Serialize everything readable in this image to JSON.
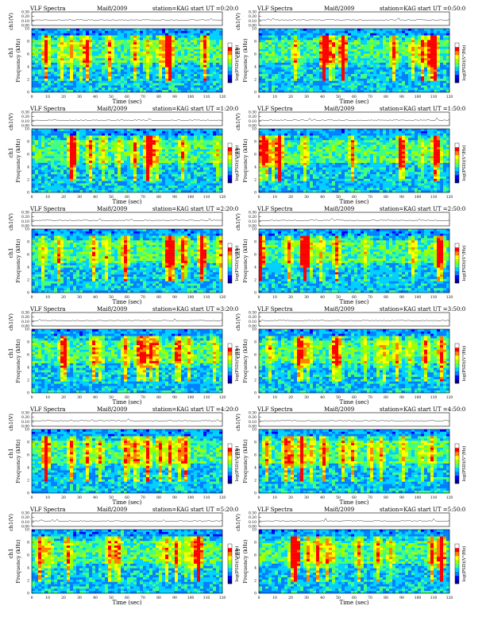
{
  "header": {
    "product": "VLF Spectra",
    "date": "Mai8/2009",
    "station": "station=KAG",
    "start_prefix": "start  UT ="
  },
  "axis_labels": {
    "voltage_ylabel": "ch1(V)",
    "spectrogram_ylabel_1": "ch1",
    "spectrogram_ylabel_2": "Frequency (kHz)",
    "xlabel": "Time (sec)",
    "colorbar_label": "log(PSD)(V²/Hz)"
  },
  "chart_data": {
    "type": "heatmap",
    "panel_count": 12,
    "layout": "6 rows x 2 columns",
    "start_times_ut": [
      "0:20:0",
      "0:50:0",
      "1:20:0",
      "1:50:0",
      "2:20:0",
      "2:50:0",
      "3:20:0",
      "3:50:0",
      "4:20:0",
      "4:50:0",
      "5:20:0",
      "5:50:0"
    ],
    "x_ticks": [
      0,
      10,
      20,
      30,
      40,
      50,
      60,
      70,
      80,
      90,
      100,
      110,
      120
    ],
    "xlim": [
      0,
      120
    ],
    "freq_ticks_khz": [
      0,
      2,
      4,
      6,
      8,
      10
    ],
    "freq_ylim_khz": [
      0,
      10
    ],
    "voltage_ticks": [
      0.3,
      0.2,
      0.1,
      0.0
    ],
    "voltage_tick_labels": [
      "0.30",
      "0.20",
      "0.10",
      "0.00"
    ],
    "colormap": [
      "#00008b",
      "#0000ff",
      "#0080ff",
      "#00d0ff",
      "#40ff80",
      "#a0ff00",
      "#ffff00",
      "#ff8000",
      "#ff0000",
      "#ffffff"
    ],
    "colorbar_range": "low (blue) to high (red/white)"
  }
}
